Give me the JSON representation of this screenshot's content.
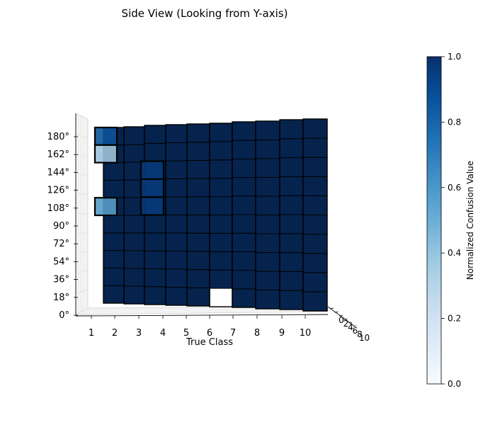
{
  "chart_data": {
    "type": "bar3d",
    "title": "Side View (Looking from Y-axis)",
    "xlabel": "True Class",
    "ylabel": "",
    "zlabel": "",
    "x_ticks": [
      "1",
      "2",
      "3",
      "4",
      "5",
      "6",
      "7",
      "8",
      "9",
      "10"
    ],
    "z_ticks": [
      "0°",
      "18°",
      "36°",
      "54°",
      "72°",
      "90°",
      "108°",
      "126°",
      "144°",
      "162°",
      "180°"
    ],
    "depth_ticks": [
      "0",
      "2",
      "4",
      "6",
      "8",
      "10"
    ],
    "z_range": [
      0,
      180
    ],
    "z_step": 18,
    "colorbar": {
      "label": "Normalized Confusion Value",
      "range": [
        0.0,
        1.0
      ],
      "ticks": [
        "0.0",
        "0.2",
        "0.4",
        "0.6",
        "0.8",
        "1.0"
      ],
      "colormap": "Blues"
    },
    "columns": [
      {
        "x": "1",
        "height": 180
      },
      {
        "x": "2",
        "height": 180
      },
      {
        "x": "3",
        "height": 180
      },
      {
        "x": "4",
        "height": 180
      },
      {
        "x": "5",
        "height": 180
      },
      {
        "x": "6",
        "height": 180
      },
      {
        "x": "7",
        "height": 180
      },
      {
        "x": "8",
        "height": 180
      },
      {
        "x": "9",
        "height": 180
      },
      {
        "x": "10",
        "height": 180
      }
    ],
    "gaps": [
      {
        "x": "6",
        "z_range": [
          0,
          18
        ]
      }
    ],
    "highlighted_cells": [
      {
        "x": "1",
        "z": 162,
        "value": 0.85
      },
      {
        "x": "1",
        "z": 144,
        "value": 0.35
      },
      {
        "x": "1",
        "z": 90,
        "value": 0.55
      },
      {
        "x": "3",
        "z": 90,
        "value": 0.95
      },
      {
        "x": "3",
        "z": 108,
        "value": 0.95
      },
      {
        "x": "3",
        "z": 126,
        "value": 0.95
      }
    ],
    "base_value": 1.0,
    "grid": true
  }
}
